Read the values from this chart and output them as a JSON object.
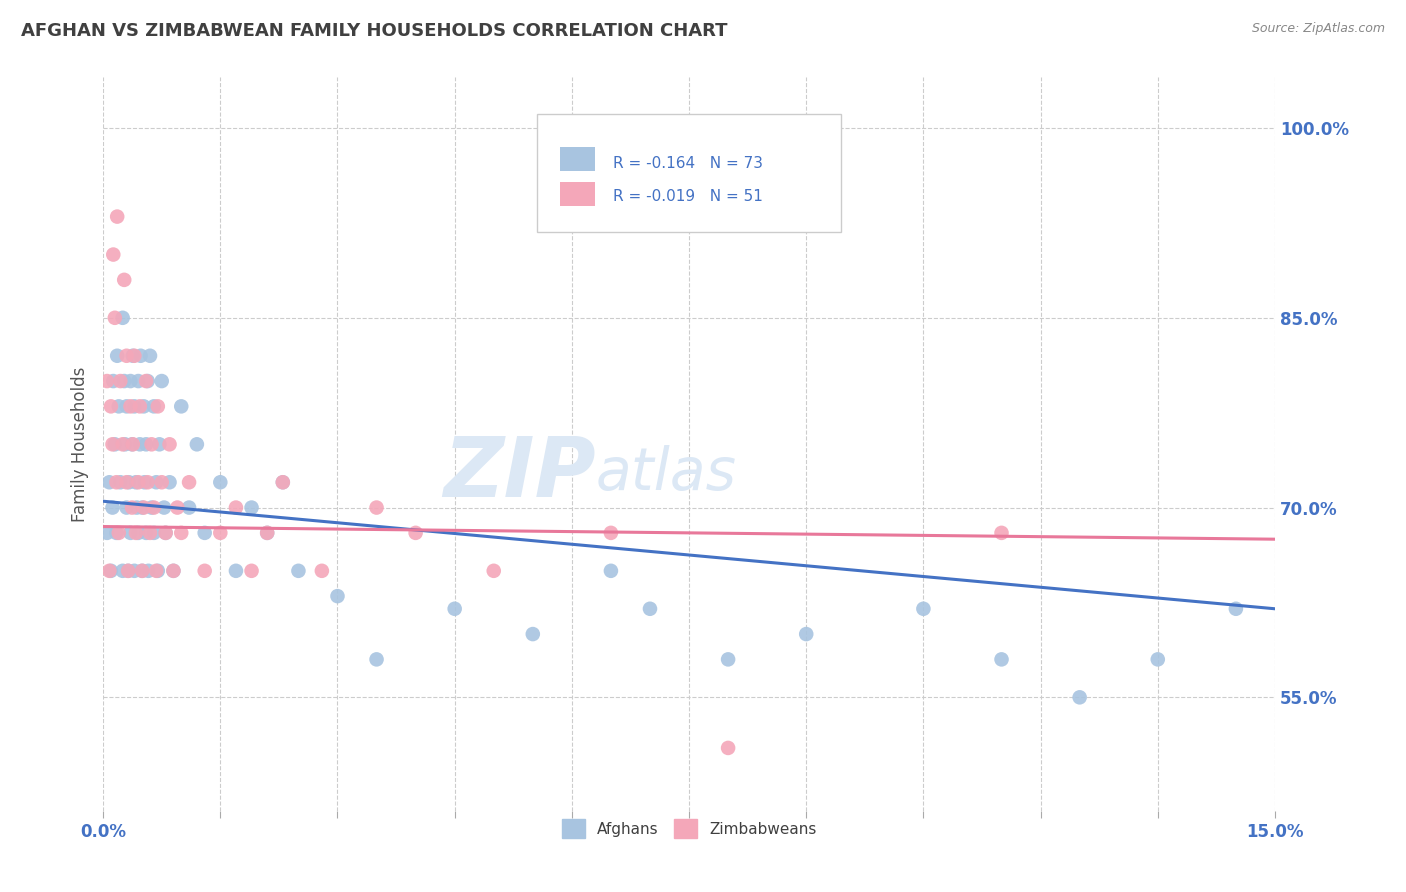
{
  "title": "AFGHAN VS ZIMBABWEAN FAMILY HOUSEHOLDS CORRELATION CHART",
  "source": "Source: ZipAtlas.com",
  "ylabel": "Family Households",
  "legend_labels": [
    "Afghans",
    "Zimbabweans"
  ],
  "afghan_color": "#a8c4e0",
  "zimbabwean_color": "#f4a7b9",
  "afghan_line_color": "#4472c4",
  "zimbabwean_line_color": "#e8789a",
  "afghan_R": -0.164,
  "afghan_N": 73,
  "zimbabwean_R": -0.019,
  "zimbabwean_N": 51,
  "x_min": 0.0,
  "x_max": 15.0,
  "y_min": 46.0,
  "y_max": 104.0,
  "y_ticks": [
    55.0,
    70.0,
    85.0,
    100.0
  ],
  "watermark_zip": "ZIP",
  "watermark_atlas": "atlas",
  "background_color": "#ffffff",
  "grid_color": "#cccccc",
  "title_color": "#404040",
  "axis_label_color": "#4472c4",
  "afghan_x": [
    0.05,
    0.08,
    0.1,
    0.12,
    0.13,
    0.15,
    0.17,
    0.18,
    0.2,
    0.22,
    0.25,
    0.25,
    0.27,
    0.28,
    0.3,
    0.3,
    0.32,
    0.33,
    0.35,
    0.35,
    0.37,
    0.38,
    0.4,
    0.4,
    0.42,
    0.43,
    0.45,
    0.45,
    0.47,
    0.48,
    0.5,
    0.5,
    0.52,
    0.53,
    0.55,
    0.55,
    0.57,
    0.58,
    0.6,
    0.62,
    0.65,
    0.65,
    0.68,
    0.7,
    0.72,
    0.75,
    0.78,
    0.8,
    0.85,
    0.9,
    1.0,
    1.1,
    1.2,
    1.3,
    1.5,
    1.7,
    1.9,
    2.1,
    2.3,
    2.5,
    3.0,
    3.5,
    4.5,
    5.5,
    6.5,
    7.0,
    8.0,
    9.0,
    10.5,
    11.5,
    12.5,
    13.5,
    14.5
  ],
  "afghan_y": [
    68,
    72,
    65,
    70,
    80,
    75,
    68,
    82,
    78,
    72,
    85,
    65,
    80,
    75,
    70,
    78,
    65,
    72,
    80,
    68,
    75,
    82,
    65,
    78,
    72,
    70,
    80,
    68,
    75,
    82,
    65,
    70,
    78,
    72,
    68,
    75,
    80,
    65,
    82,
    70,
    68,
    78,
    72,
    65,
    75,
    80,
    70,
    68,
    72,
    65,
    78,
    70,
    75,
    68,
    72,
    65,
    70,
    68,
    72,
    65,
    63,
    58,
    62,
    60,
    65,
    62,
    58,
    60,
    62,
    58,
    55,
    58,
    62
  ],
  "zimbabwean_x": [
    0.05,
    0.08,
    0.1,
    0.12,
    0.13,
    0.15,
    0.17,
    0.18,
    0.2,
    0.22,
    0.25,
    0.27,
    0.3,
    0.3,
    0.32,
    0.35,
    0.37,
    0.38,
    0.4,
    0.42,
    0.45,
    0.47,
    0.5,
    0.52,
    0.55,
    0.57,
    0.6,
    0.62,
    0.65,
    0.68,
    0.7,
    0.75,
    0.8,
    0.85,
    0.9,
    0.95,
    1.0,
    1.1,
    1.3,
    1.5,
    1.7,
    1.9,
    2.1,
    2.3,
    2.8,
    3.5,
    4.0,
    5.0,
    6.5,
    8.0,
    11.5
  ],
  "zimbabwean_y": [
    80,
    65,
    78,
    75,
    90,
    85,
    72,
    93,
    68,
    80,
    75,
    88,
    72,
    82,
    65,
    78,
    70,
    75,
    82,
    68,
    72,
    78,
    65,
    70,
    80,
    72,
    68,
    75,
    70,
    65,
    78,
    72,
    68,
    75,
    65,
    70,
    68,
    72,
    65,
    68,
    70,
    65,
    68,
    72,
    65,
    70,
    68,
    65,
    68,
    51,
    68
  ],
  "afghan_trend_x0": 0.0,
  "afghan_trend_y0": 70.5,
  "afghan_trend_x1": 15.0,
  "afghan_trend_y1": 62.0,
  "zimb_trend_x0": 0.0,
  "zimb_trend_y0": 68.5,
  "zimb_trend_x1": 15.0,
  "zimb_trend_y1": 67.5
}
